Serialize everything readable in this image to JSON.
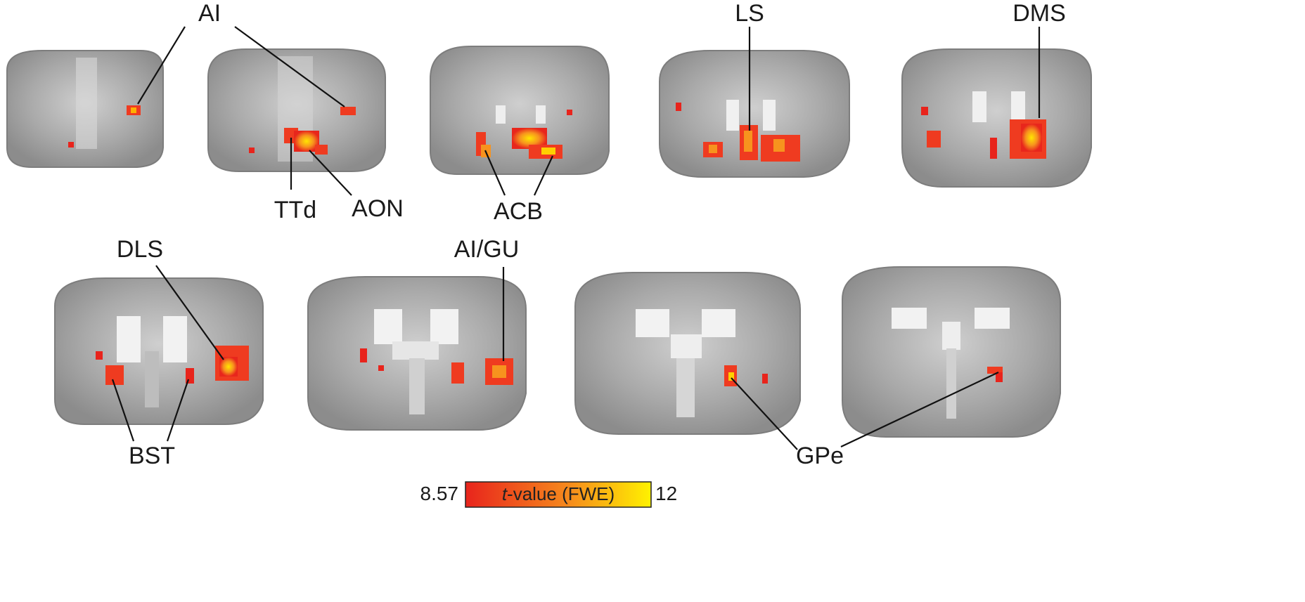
{
  "labels": {
    "ai_top": "AI",
    "ls": "LS",
    "dms": "DMS",
    "ttd": "TTd",
    "aon": "AON",
    "acb": "ACB",
    "dls": "DLS",
    "ai_gu": "AI/GU",
    "bst": "BST",
    "gpe": "GPe"
  },
  "colorbar": {
    "min": "8.57",
    "max": "12",
    "title_italic": "t",
    "title_rest": "-value (FWE)",
    "colors": {
      "low": "#e8241c",
      "mid": "#f6891d",
      "high": "#fff200"
    }
  },
  "slices": {
    "count_row1": 5,
    "count_row2": 4
  }
}
